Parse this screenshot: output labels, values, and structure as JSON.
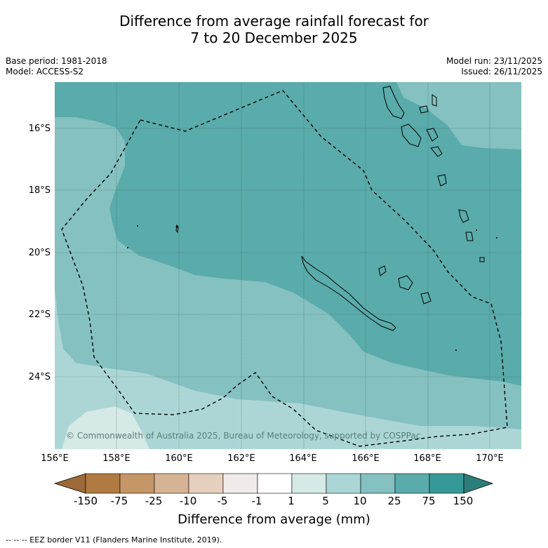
{
  "title_line1": "Difference from average rainfall forecast for",
  "title_line2": "7 to 20 December 2025",
  "base_period": "Base period: 1981-2018",
  "model": "Model: ACCESS-S2",
  "model_run": "Model run: 23/11/2025",
  "issued": "Issued: 26/11/2025",
  "lat_labels": [
    "16°S",
    "18°S",
    "20°S",
    "22°S",
    "24°S"
  ],
  "lon_labels": [
    "156°E",
    "158°E",
    "160°E",
    "162°E",
    "164°E",
    "166°E",
    "168°E",
    "170°E"
  ],
  "copyright": "© Commonwealth of Australia 2025, Bureau of Meteorology, supported by COSPPac",
  "legend": {
    "title": "Difference from average (mm)",
    "tick_labels": [
      "-150",
      "-75",
      "-25",
      "-10",
      "-5",
      "-1",
      "1",
      "5",
      "10",
      "25",
      "75",
      "150"
    ],
    "colors": [
      "#9c6a38",
      "#b07a43",
      "#c59667",
      "#d5b394",
      "#e6d0bd",
      "#f0ebe8",
      "#ffffff",
      "#d5e9e7",
      "#acd6d5",
      "#84c1c0",
      "#5aabab",
      "#379995",
      "#2c7e7a"
    ]
  },
  "footnote": "--  --  -- EEZ border V11 (Flanders Marine Institute, 2019)."
}
